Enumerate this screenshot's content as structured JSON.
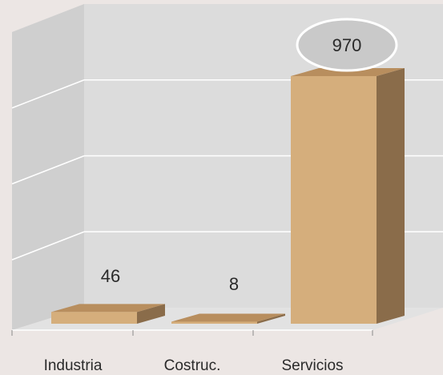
{
  "chart_data": {
    "type": "bar",
    "categories": [
      "Industria",
      "Costruc.",
      "Servicios"
    ],
    "values": [
      46,
      8,
      970
    ],
    "value_labels": [
      "46",
      "8",
      "970"
    ],
    "highlighted_category": "Servicios",
    "ylim": [
      0,
      1200
    ],
    "grid": true,
    "title": "",
    "xlabel": "",
    "ylabel": ""
  },
  "colors": {
    "background": "#ece6e4",
    "back_wall": "#dcdcdc",
    "side_wall": "#cfcfcf",
    "floor": "#e2e2e2",
    "gridline": "#ffffff",
    "bar_front": "#d5ae7c",
    "bar_top": "#b88e5e",
    "bar_side": "#8a6c4a",
    "callout_fill": "#c9c9c9",
    "callout_stroke": "#ffffff"
  }
}
